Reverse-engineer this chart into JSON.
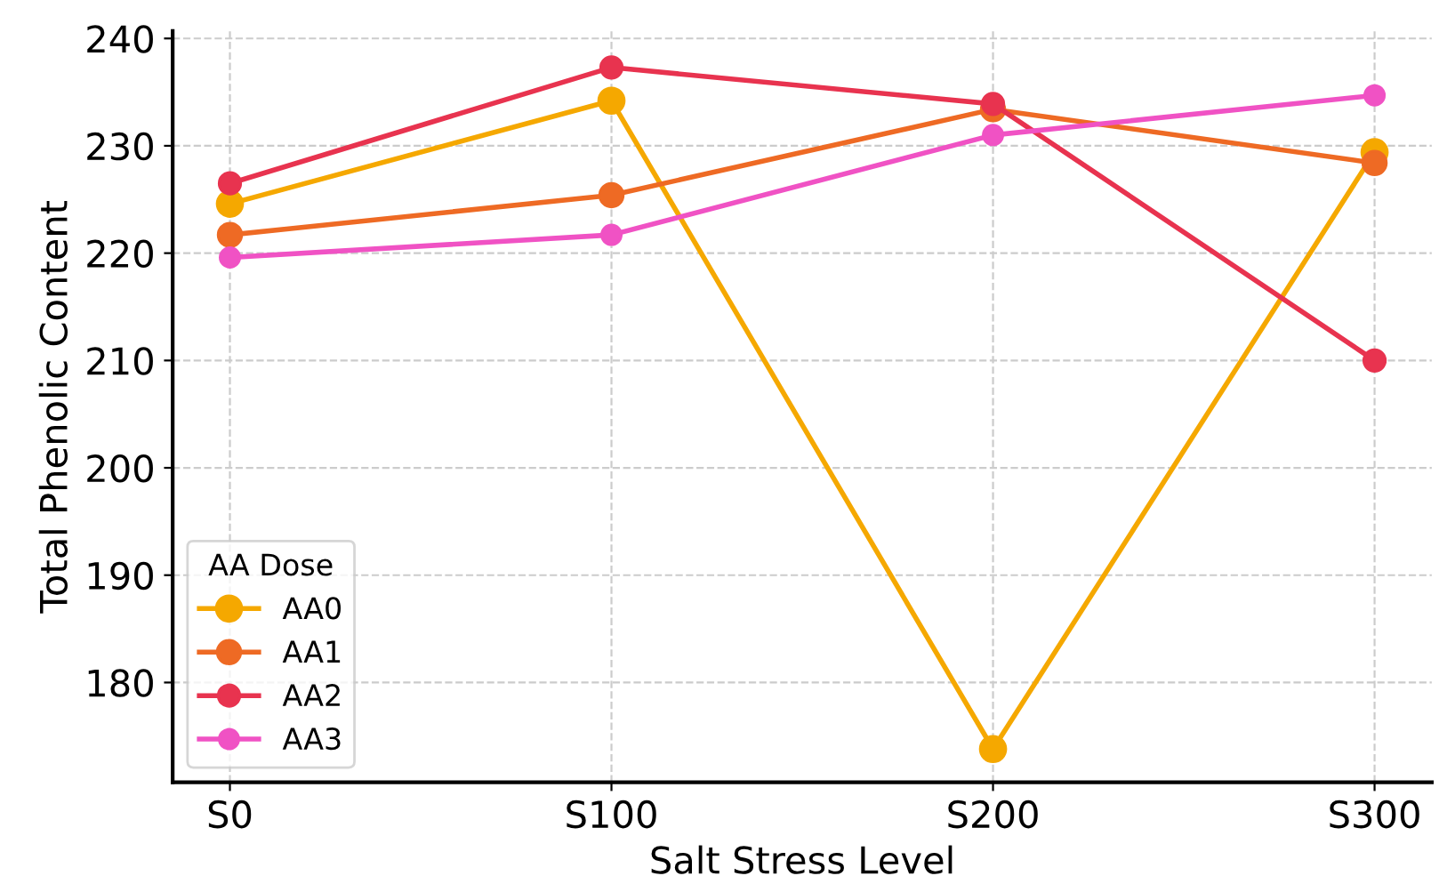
{
  "chart_data": {
    "type": "line",
    "xlabel": "Salt Stress Level",
    "ylabel": "Total Phenolic Content",
    "legend_title": "AA Dose",
    "categories": [
      "S0",
      "S100",
      "S200",
      "S300"
    ],
    "series": [
      {
        "name": "AA0",
        "color": "#f5a800",
        "values": [
          224.6,
          234.2,
          173.8,
          229.4
        ]
      },
      {
        "name": "AA1",
        "color": "#ee6a24",
        "values": [
          221.7,
          225.4,
          233.4,
          228.4
        ]
      },
      {
        "name": "AA2",
        "color": "#e8334f",
        "values": [
          226.5,
          237.3,
          233.9,
          210.0
        ]
      },
      {
        "name": "AA3",
        "color": "#f052c4",
        "values": [
          219.6,
          221.7,
          231.0,
          234.7
        ]
      }
    ],
    "ylim": [
      170.7,
      240.7
    ],
    "yticks": [
      180,
      190,
      200,
      210,
      220,
      230,
      240
    ],
    "grid": true,
    "legend": "bottom left",
    "marker": "circle",
    "line_style": "solid"
  }
}
